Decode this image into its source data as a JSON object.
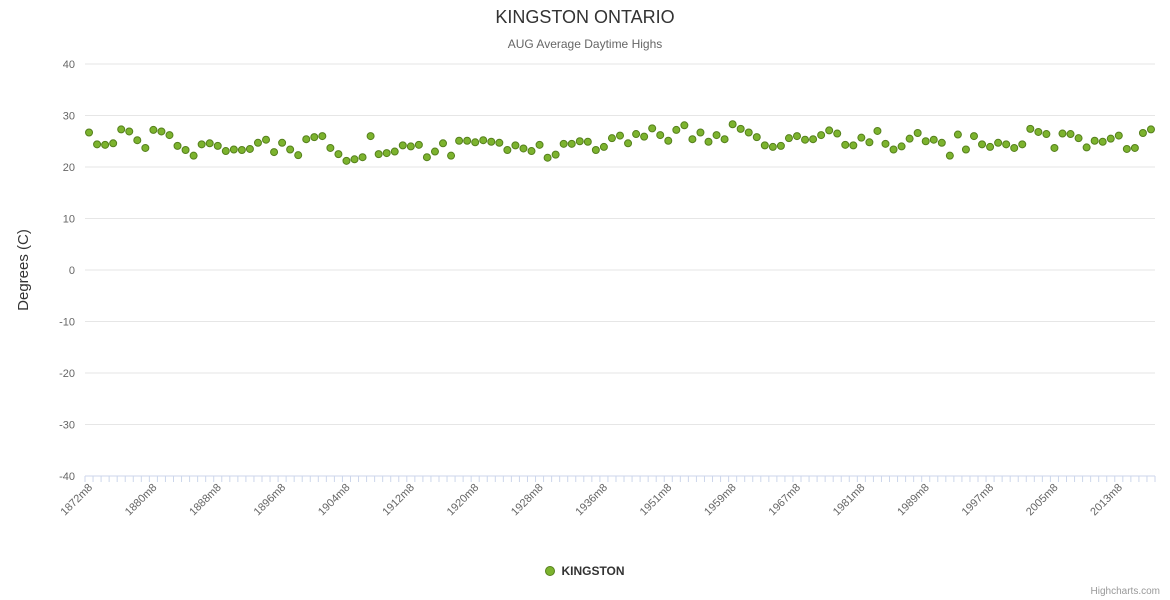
{
  "credits": "Highcharts.com",
  "chart_data": {
    "type": "scatter",
    "title": "KINGSTON ONTARIO",
    "subtitle": "AUG Average Daytime Highs",
    "xlabel": "",
    "ylabel": "Degrees (C)",
    "ylim": [
      -40,
      40
    ],
    "ytick_interval": 10,
    "xtick_label_every": 8,
    "grid": true,
    "legend_position": "bottom-center",
    "colors": {
      "grid": "#e6e6e6",
      "axis_line": "#ccd6eb",
      "axis_label": "#666666",
      "title": "#333333",
      "subtitle": "#666666",
      "credits": "#999999"
    },
    "series": [
      {
        "name": "KINGSTON",
        "color": "#7cb32e",
        "border_color": "#55801c",
        "marker": "circle"
      }
    ],
    "categories": [
      "1872m8",
      "1873m8",
      "1874m8",
      "1875m8",
      "1876m8",
      "1877m8",
      "1878m8",
      "1879m8",
      "1880m8",
      "1881m8",
      "1882m8",
      "1883m8",
      "1884m8",
      "1885m8",
      "1886m8",
      "1887m8",
      "1888m8",
      "1889m8",
      "1890m8",
      "1891m8",
      "1892m8",
      "1893m8",
      "1894m8",
      "1895m8",
      "1896m8",
      "1897m8",
      "1898m8",
      "1899m8",
      "1900m8",
      "1901m8",
      "1902m8",
      "1903m8",
      "1904m8",
      "1905m8",
      "1906m8",
      "1907m8",
      "1908m8",
      "1909m8",
      "1910m8",
      "1911m8",
      "1912m8",
      "1913m8",
      "1914m8",
      "1915m8",
      "1916m8",
      "1917m8",
      "1918m8",
      "1919m8",
      "1920m8",
      "1921m8",
      "1922m8",
      "1923m8",
      "1924m8",
      "1925m8",
      "1926m8",
      "1927m8",
      "1928m8",
      "1929m8",
      "1930m8",
      "1931m8",
      "1932m8",
      "1933m8",
      "1934m8",
      "1935m8",
      "1936m8",
      "1937m8",
      "1938m8",
      "1939m8",
      "1947m8",
      "1948m8",
      "1949m8",
      "1950m8",
      "1951m8",
      "1952m8",
      "1953m8",
      "1954m8",
      "1955m8",
      "1956m8",
      "1957m8",
      "1958m8",
      "1959m8",
      "1960m8",
      "1961m8",
      "1962m8",
      "1963m8",
      "1964m8",
      "1965m8",
      "1966m8",
      "1967m8",
      "1968m8",
      "1969m8",
      "1970m8",
      "1977m8",
      "1978m8",
      "1979m8",
      "1980m8",
      "1981m8",
      "1982m8",
      "1983m8",
      "1984m8",
      "1985m8",
      "1986m8",
      "1987m8",
      "1988m8",
      "1989m8",
      "1990m8",
      "1991m8",
      "1992m8",
      "1993m8",
      "1994m8",
      "1995m8",
      "1996m8",
      "1997m8",
      "1998m8",
      "1999m8",
      "2000m8",
      "2001m8",
      "2002m8",
      "2003m8",
      "2004m8",
      "2005m8",
      "2006m8",
      "2007m8",
      "2008m8",
      "2009m8",
      "2010m8",
      "2011m8",
      "2012m8",
      "2013m8",
      "2014m8",
      "2015m8",
      "2016m8",
      "2017m8"
    ],
    "values": [
      26.7,
      24.4,
      24.3,
      24.6,
      27.3,
      26.9,
      25.2,
      23.7,
      27.2,
      26.9,
      26.2,
      24.1,
      23.3,
      22.2,
      24.4,
      24.6,
      24.1,
      23.1,
      23.4,
      23.3,
      23.5,
      24.7,
      25.3,
      22.9,
      24.7,
      23.4,
      22.3,
      25.4,
      25.8,
      26.0,
      23.7,
      22.5,
      21.2,
      21.5,
      21.9,
      26.0,
      22.5,
      22.7,
      23.0,
      24.2,
      24.0,
      24.3,
      21.9,
      23.0,
      24.6,
      22.2,
      25.1,
      25.1,
      24.8,
      25.2,
      24.9,
      24.7,
      23.3,
      24.2,
      23.6,
      23.1,
      24.3,
      21.8,
      22.4,
      24.5,
      24.5,
      25.0,
      24.9,
      23.3,
      23.9,
      25.6,
      26.1,
      24.6,
      26.4,
      25.9,
      27.5,
      26.2,
      25.1,
      27.2,
      28.1,
      25.4,
      26.7,
      24.9,
      26.2,
      25.4,
      28.3,
      27.4,
      26.7,
      25.8,
      24.2,
      23.9,
      24.1,
      25.6,
      26.0,
      25.3,
      25.4,
      26.2,
      27.1,
      26.5,
      24.3,
      24.2,
      25.7,
      24.8,
      27.0,
      24.5,
      23.4,
      24.0,
      25.5,
      26.6,
      25.0,
      25.3,
      24.7,
      22.2,
      26.3,
      23.4,
      26.0,
      24.4,
      23.9,
      24.7,
      24.4,
      23.7,
      24.4,
      27.4,
      26.8,
      26.4,
      23.7,
      26.5,
      26.4,
      25.6,
      23.8,
      25.1,
      24.9,
      25.5,
      26.1,
      23.5,
      23.7,
      26.6,
      27.3
    ]
  }
}
